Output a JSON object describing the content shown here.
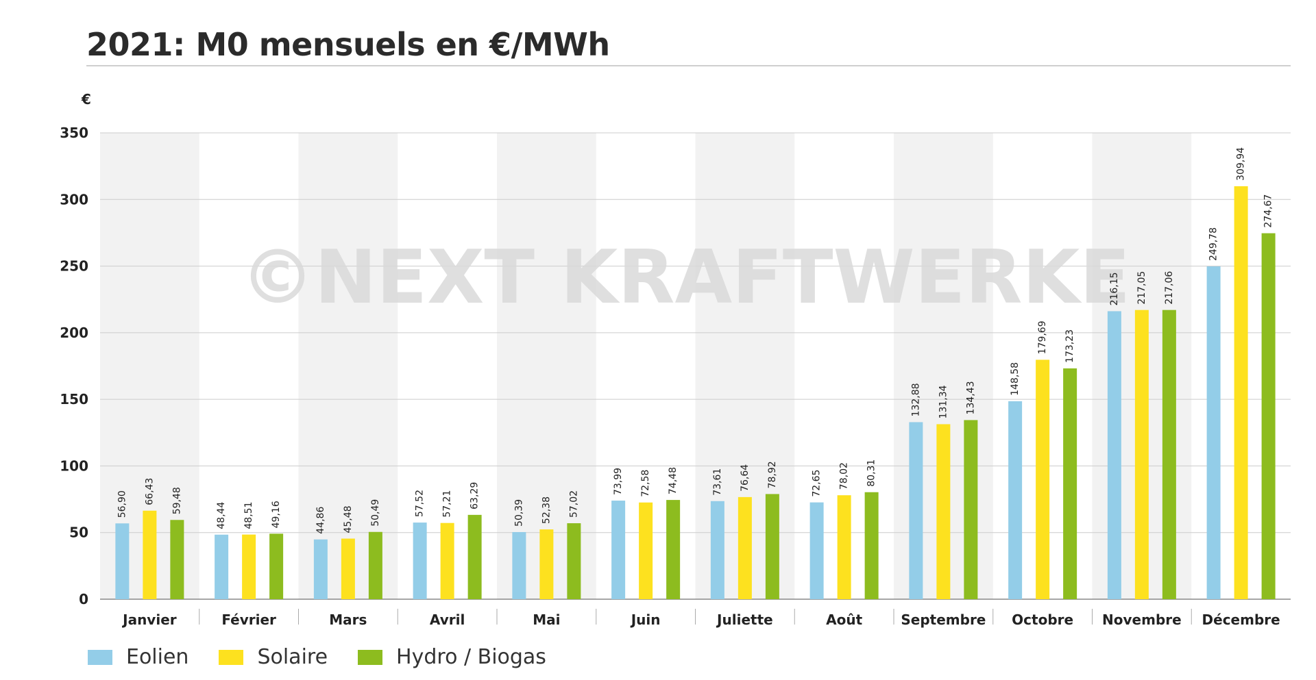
{
  "title": "2021: M0 mensuels en €/MWh",
  "watermark": "©NEXT KRAFTWERKE",
  "colors": {
    "eolien": "#93cde8",
    "solaire": "#fde11f",
    "hydro": "#8dbc1f",
    "band": "#f2f2f2",
    "grid": "#cccccc"
  },
  "chart_data": {
    "type": "bar",
    "title": "2021: M0 mensuels en €/MWh",
    "ylabel": "€",
    "xlabel": "",
    "ylim": [
      0,
      350
    ],
    "yticks": [
      0,
      50,
      100,
      150,
      200,
      250,
      300,
      350
    ],
    "grid": true,
    "legend_position": "bottom-left",
    "categories": [
      "Janvier",
      "Février",
      "Mars",
      "Avril",
      "Mai",
      "Juin",
      "Juliette",
      "Août",
      "Septembre",
      "Octobre",
      "Novembre",
      "Décembre"
    ],
    "series": [
      {
        "name": "Eolien",
        "color": "#93cde8",
        "values": [
          56.9,
          48.44,
          44.86,
          57.52,
          50.39,
          73.99,
          73.61,
          72.65,
          132.88,
          148.58,
          216.15,
          249.78
        ],
        "labels": [
          "56,90",
          "48,44",
          "44,86",
          "57,52",
          "50,39",
          "73,99",
          "73,61",
          "72,65",
          "132,88",
          "148,58",
          "216,15",
          "249,78"
        ]
      },
      {
        "name": "Solaire",
        "color": "#fde11f",
        "values": [
          66.43,
          48.51,
          45.48,
          57.21,
          52.38,
          72.58,
          76.64,
          78.02,
          131.34,
          179.69,
          217.05,
          309.94
        ],
        "labels": [
          "66,43",
          "48,51",
          "45,48",
          "57,21",
          "52,38",
          "72,58",
          "76,64",
          "78,02",
          "131,34",
          "179,69",
          "217,05",
          "309,94"
        ]
      },
      {
        "name": "Hydro / Biogas",
        "color": "#8dbc1f",
        "values": [
          59.48,
          49.16,
          50.49,
          63.29,
          57.02,
          74.48,
          78.92,
          80.31,
          134.43,
          173.23,
          217.06,
          274.67
        ],
        "labels": [
          "59,48",
          "49,16",
          "50,49",
          "63,29",
          "57,02",
          "74,48",
          "78,92",
          "80,31",
          "134,43",
          "173,23",
          "217,06",
          "274,67"
        ]
      }
    ]
  },
  "legend": [
    {
      "label": "Eolien",
      "color": "#93cde8"
    },
    {
      "label": "Solaire",
      "color": "#fde11f"
    },
    {
      "label": "Hydro / Biogas",
      "color": "#8dbc1f"
    }
  ]
}
